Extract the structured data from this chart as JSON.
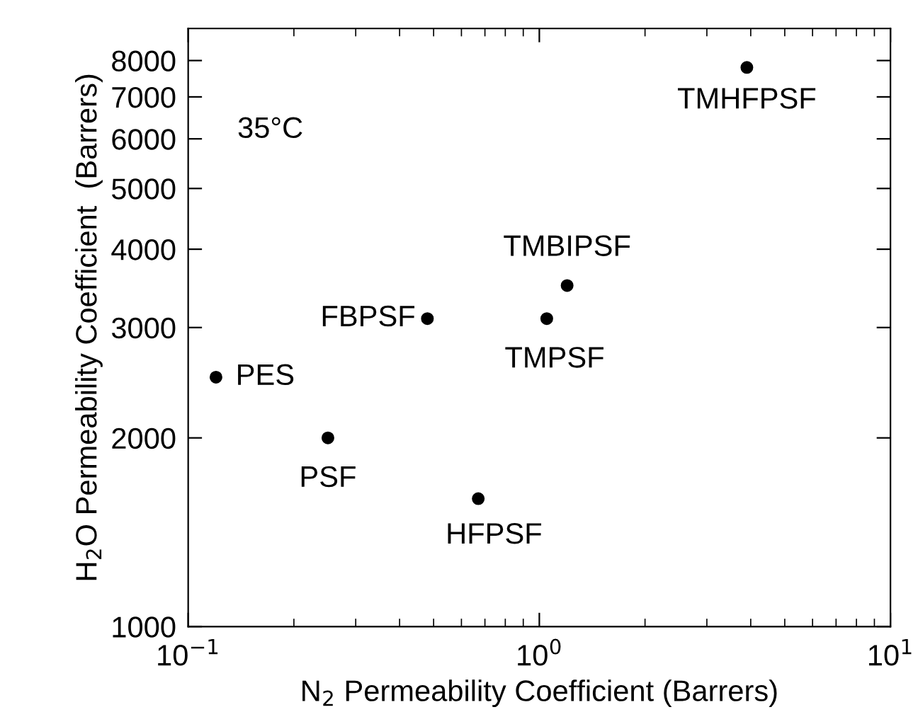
{
  "chart_data": {
    "type": "scatter",
    "xlabel": "N$_{2}$ Permeability Coefficient (Barrers)",
    "ylabel": "H$_{2}$O Permeability Coefficient  (Barrers)",
    "log": "xy",
    "marker": "circle",
    "grid": false,
    "x": [
      0.12,
      0.25,
      0.48,
      0.67,
      1.05,
      1.2,
      3.9
    ],
    "series": [
      {
        "color": "#000000",
        "values": [
          2500,
          2000,
          3100,
          1600,
          3100,
          3500,
          7800
        ]
      }
    ],
    "xlim": [
      0.1,
      10
    ],
    "ylim": [
      1000,
      9000
    ],
    "xticks": [
      {
        "value": 0.1,
        "label": "10$^{−1}$"
      },
      {
        "value": 1,
        "label": "10$^{0}$"
      },
      {
        "value": 10,
        "label": "10$^{1}$"
      }
    ],
    "yticks": [
      1000,
      2000,
      3000,
      4000,
      5000,
      6000,
      7000,
      8000
    ],
    "annotations": [
      "35°C",
      {
        "text": "PES",
        "x": 0.12,
        "y": 2500
      },
      {
        "text": "PSF",
        "x": 0.25,
        "y": 2000
      },
      {
        "text": "FBPSF",
        "x": 0.48,
        "y": 3100
      },
      {
        "text": "HFPSF",
        "x": 0.67,
        "y": 1600
      },
      {
        "text": "TMPSF",
        "x": 1.05,
        "y": 3100
      },
      {
        "text": "TMBIPSF",
        "x": 1.2,
        "y": 3500
      },
      {
        "text": "TMHFPSF",
        "x": 3.9,
        "y": 7800
      }
    ]
  }
}
